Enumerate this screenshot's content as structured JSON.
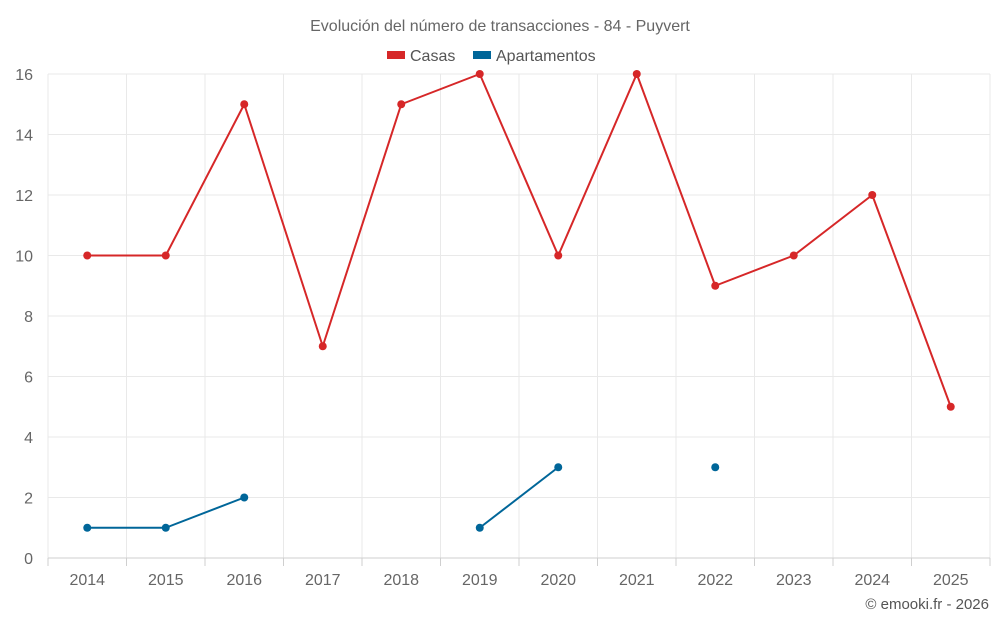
{
  "chart_data": {
    "type": "line",
    "title": "Evolución del número de transacciones - 84 - Puyvert",
    "categories": [
      "2014",
      "2015",
      "2016",
      "2017",
      "2018",
      "2019",
      "2020",
      "2021",
      "2022",
      "2023",
      "2024",
      "2025"
    ],
    "ylim": [
      0,
      16
    ],
    "yticks": [
      0,
      2,
      4,
      6,
      8,
      10,
      12,
      14,
      16
    ],
    "grid": true,
    "legend_position": "top-center",
    "series": [
      {
        "name": "Casas",
        "color": "#d62728",
        "values": [
          10,
          10,
          15,
          7,
          15,
          16,
          10,
          16,
          9,
          10,
          12,
          5
        ]
      },
      {
        "name": "Apartamentos",
        "color": "#006699",
        "values": [
          1,
          1,
          2,
          null,
          null,
          1,
          3,
          null,
          3,
          null,
          null,
          null
        ]
      }
    ],
    "credit": "© emooki.fr - 2026"
  }
}
